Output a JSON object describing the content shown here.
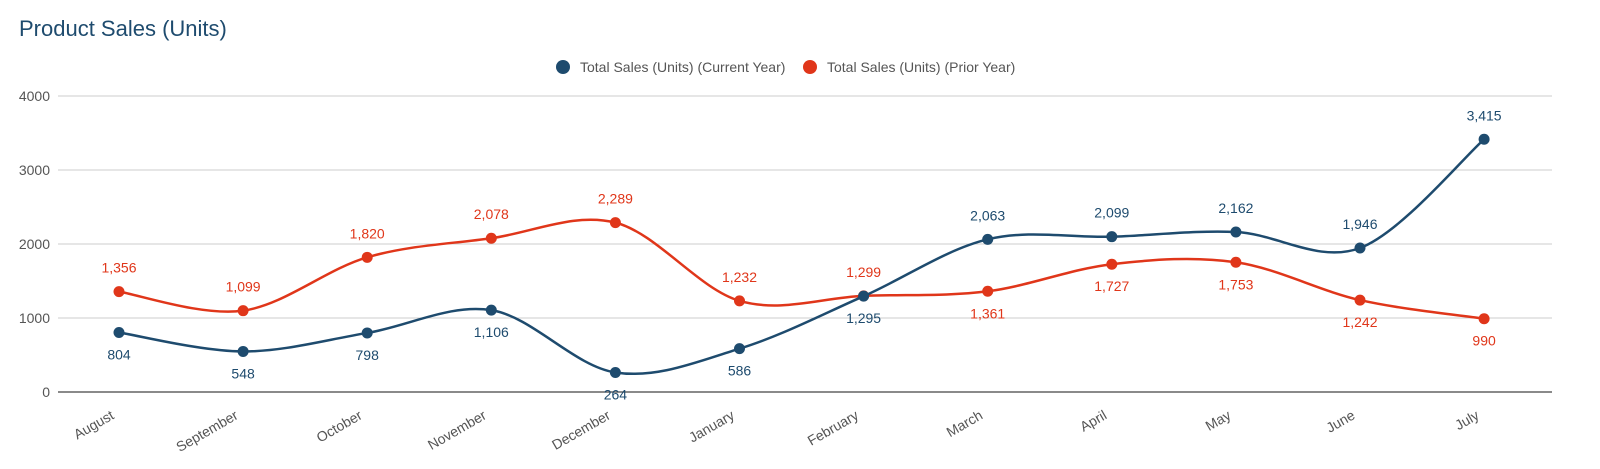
{
  "chart_data": {
    "type": "line",
    "title": "Product Sales (Units)",
    "categories": [
      "August",
      "September",
      "October",
      "November",
      "December",
      "January",
      "February",
      "March",
      "April",
      "May",
      "June",
      "July"
    ],
    "y_ticks": [
      0,
      1000,
      2000,
      3000,
      4000
    ],
    "ylim": [
      0,
      4000
    ],
    "grid": true,
    "legend_position": "top-center",
    "series": [
      {
        "name": "Total Sales (Units) (Current Year)",
        "color": "#1e4b6e",
        "values": [
          804,
          548,
          798,
          1106,
          264,
          586,
          1295,
          2063,
          2099,
          2162,
          1946,
          3415
        ],
        "labels": [
          "804",
          "548",
          "798",
          "1,106",
          "264",
          "586",
          "1,295",
          "2,063",
          "2,099",
          "2,162",
          "1,946",
          "3,415"
        ]
      },
      {
        "name": "Total Sales (Units) (Prior Year)",
        "color": "#e0361a",
        "values": [
          1356,
          1099,
          1820,
          2078,
          2289,
          1232,
          1299,
          1361,
          1727,
          1753,
          1242,
          990
        ],
        "labels": [
          "1,356",
          "1,099",
          "1,820",
          "2,078",
          "2,289",
          "1,232",
          "1,299",
          "1,361",
          "1,727",
          "1,753",
          "1,242",
          "990"
        ]
      }
    ]
  }
}
